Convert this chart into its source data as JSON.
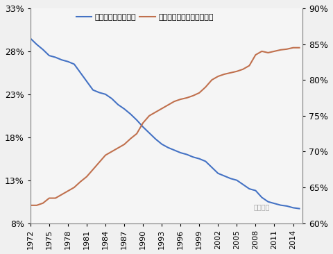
{
  "years": [
    1972,
    1973,
    1974,
    1975,
    1976,
    1977,
    1978,
    1979,
    1980,
    1981,
    1982,
    1983,
    1984,
    1985,
    1986,
    1987,
    1988,
    1989,
    1990,
    1991,
    1992,
    1993,
    1994,
    1995,
    1996,
    1997,
    1998,
    1999,
    2000,
    2001,
    2002,
    2003,
    2004,
    2005,
    2006,
    2007,
    2008,
    2009,
    2010,
    2011,
    2012,
    2013,
    2014,
    2015
  ],
  "manufacturing": [
    29.5,
    28.8,
    28.2,
    27.5,
    27.3,
    27.0,
    26.8,
    26.5,
    25.5,
    24.5,
    23.5,
    23.2,
    23.0,
    22.5,
    21.8,
    21.3,
    20.7,
    20.0,
    19.2,
    18.5,
    17.8,
    17.2,
    16.8,
    16.5,
    16.2,
    16.0,
    15.7,
    15.5,
    15.2,
    14.5,
    13.8,
    13.5,
    13.2,
    13.0,
    12.5,
    12.0,
    11.8,
    11.0,
    10.5,
    10.3,
    10.1,
    10.0,
    9.8,
    9.7
  ],
  "services": [
    62.5,
    62.5,
    62.8,
    63.5,
    63.5,
    64.0,
    64.5,
    65.0,
    65.8,
    66.5,
    67.5,
    68.5,
    69.5,
    70.0,
    70.5,
    71.0,
    71.8,
    72.5,
    74.0,
    75.0,
    75.5,
    76.0,
    76.5,
    77.0,
    77.3,
    77.5,
    77.8,
    78.2,
    79.0,
    80.0,
    80.5,
    80.8,
    81.0,
    81.2,
    81.5,
    82.0,
    83.5,
    84.0,
    83.8,
    84.0,
    84.2,
    84.3,
    84.5,
    84.5
  ],
  "left_ylim": [
    8,
    33
  ],
  "right_ylim": [
    60,
    90
  ],
  "left_yticks": [
    8,
    13,
    18,
    23,
    28,
    33
  ],
  "right_yticks": [
    60,
    65,
    70,
    75,
    80,
    85,
    90
  ],
  "xticks": [
    1972,
    1975,
    1978,
    1981,
    1984,
    1987,
    1990,
    1993,
    1996,
    1999,
    2002,
    2005,
    2008,
    2011,
    2014
  ],
  "line1_color": "#4472C4",
  "line2_color": "#C0704D",
  "legend1": "制造业就业人口占比",
  "legend2": "服务业就业人口占比（右）",
  "bg_color": "#f0f0f0",
  "plot_bg_color": "#f5f5f5",
  "watermark": "济平宏观",
  "font_size": 9,
  "legend_font_size": 8
}
